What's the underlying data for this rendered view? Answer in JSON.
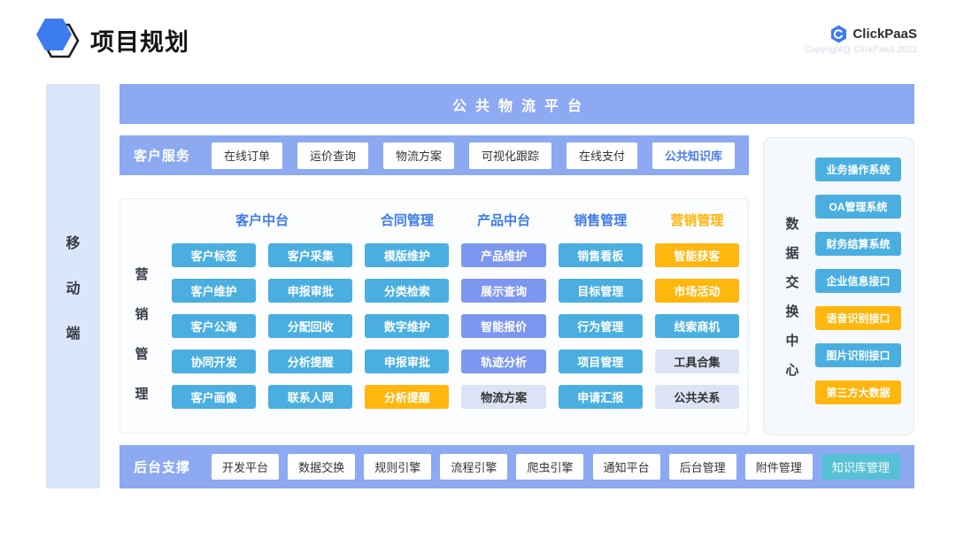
{
  "app": {
    "title": "项目规划"
  },
  "brand": {
    "name": "ClickPaaS",
    "copyright": "Copyright@ ClickPaaS 2022"
  },
  "mobile_bar": {
    "label": "移动端"
  },
  "platform_banner": {
    "label": "公共物流平台"
  },
  "customer_service": {
    "label": "客户服务",
    "items": [
      {
        "label": "在线订单",
        "variant": "white"
      },
      {
        "label": "运价查询",
        "variant": "white"
      },
      {
        "label": "物流方案",
        "variant": "white"
      },
      {
        "label": "可视化跟踪",
        "variant": "white"
      },
      {
        "label": "在线支付",
        "variant": "white"
      },
      {
        "label": "公共知识库",
        "variant": "link-blue"
      }
    ]
  },
  "marketing_panel": {
    "side_label": "营销管理",
    "headers": [
      {
        "label": "客户中台",
        "span": 2,
        "color": "blue"
      },
      {
        "label": "合同管理",
        "span": 1,
        "color": "blue"
      },
      {
        "label": "产品中台",
        "span": 1,
        "color": "blue"
      },
      {
        "label": "销售管理",
        "span": 1,
        "color": "blue"
      },
      {
        "label": "营销管理",
        "span": 1,
        "color": "orange"
      }
    ],
    "rows": [
      [
        {
          "label": "客户标签",
          "variant": "teal"
        },
        {
          "label": "客户采集",
          "variant": "teal"
        },
        {
          "label": "模版维护",
          "variant": "teal"
        },
        {
          "label": "产品维护",
          "variant": "purple"
        },
        {
          "label": "销售看板",
          "variant": "teal"
        },
        {
          "label": "智能获客",
          "variant": "orange"
        }
      ],
      [
        {
          "label": "客户维护",
          "variant": "teal"
        },
        {
          "label": "申报审批",
          "variant": "teal"
        },
        {
          "label": "分类检索",
          "variant": "teal"
        },
        {
          "label": "展示查询",
          "variant": "purple"
        },
        {
          "label": "目标管理",
          "variant": "teal"
        },
        {
          "label": "市场活动",
          "variant": "orange"
        }
      ],
      [
        {
          "label": "客户公海",
          "variant": "teal"
        },
        {
          "label": "分配回收",
          "variant": "teal"
        },
        {
          "label": "数字维护",
          "variant": "teal"
        },
        {
          "label": "智能报价",
          "variant": "purple"
        },
        {
          "label": "行为管理",
          "variant": "teal"
        },
        {
          "label": "线索商机",
          "variant": "teal"
        }
      ],
      [
        {
          "label": "协同开发",
          "variant": "teal"
        },
        {
          "label": "分析提醒",
          "variant": "teal"
        },
        {
          "label": "申报审批",
          "variant": "teal"
        },
        {
          "label": "轨迹分析",
          "variant": "purple"
        },
        {
          "label": "项目管理",
          "variant": "teal"
        },
        {
          "label": "工具合集",
          "variant": "light"
        }
      ],
      [
        {
          "label": "客户画像",
          "variant": "teal"
        },
        {
          "label": "联系人网",
          "variant": "teal"
        },
        {
          "label": "分析提醒",
          "variant": "orange"
        },
        {
          "label": "物流方案",
          "variant": "light"
        },
        {
          "label": "申请汇报",
          "variant": "teal"
        },
        {
          "label": "公共关系",
          "variant": "light"
        }
      ]
    ]
  },
  "data_exchange": {
    "side_label": "数据交换中心",
    "items": [
      {
        "label": "业务操作系统",
        "variant": "teal"
      },
      {
        "label": "OA管理系统",
        "variant": "teal"
      },
      {
        "label": "财务结算系统",
        "variant": "teal"
      },
      {
        "label": "企业信息接口",
        "variant": "teal"
      },
      {
        "label": "语音识别接口",
        "variant": "orange"
      },
      {
        "label": "图片识别接口",
        "variant": "teal"
      },
      {
        "label": "第三方大数据",
        "variant": "orange"
      }
    ]
  },
  "backend_support": {
    "label": "后台支撑",
    "items": [
      {
        "label": "开发平台",
        "variant": "white"
      },
      {
        "label": "数据交换",
        "variant": "white"
      },
      {
        "label": "规则引擎",
        "variant": "white"
      },
      {
        "label": "流程引擎",
        "variant": "white"
      },
      {
        "label": "爬虫引擎",
        "variant": "white"
      },
      {
        "label": "通知平台",
        "variant": "white"
      },
      {
        "label": "后台管理",
        "variant": "white"
      },
      {
        "label": "附件管理",
        "variant": "white"
      },
      {
        "label": "知识库管理",
        "variant": "cyan"
      }
    ]
  },
  "colors": {
    "banner_blue": "#8CA9F2",
    "mobile_bar_bg": "#DCE6FA",
    "teal": "#4AAFE0",
    "purple": "#7D97F0",
    "orange": "#FFB60D",
    "light_chip": "#DCE3F5",
    "cyan": "#56C1D6",
    "header_blue": "#3E7BEA",
    "header_orange": "#FFB30A",
    "link_blue": "#4A7BEC",
    "logo_blue": "#3D7BF0"
  }
}
